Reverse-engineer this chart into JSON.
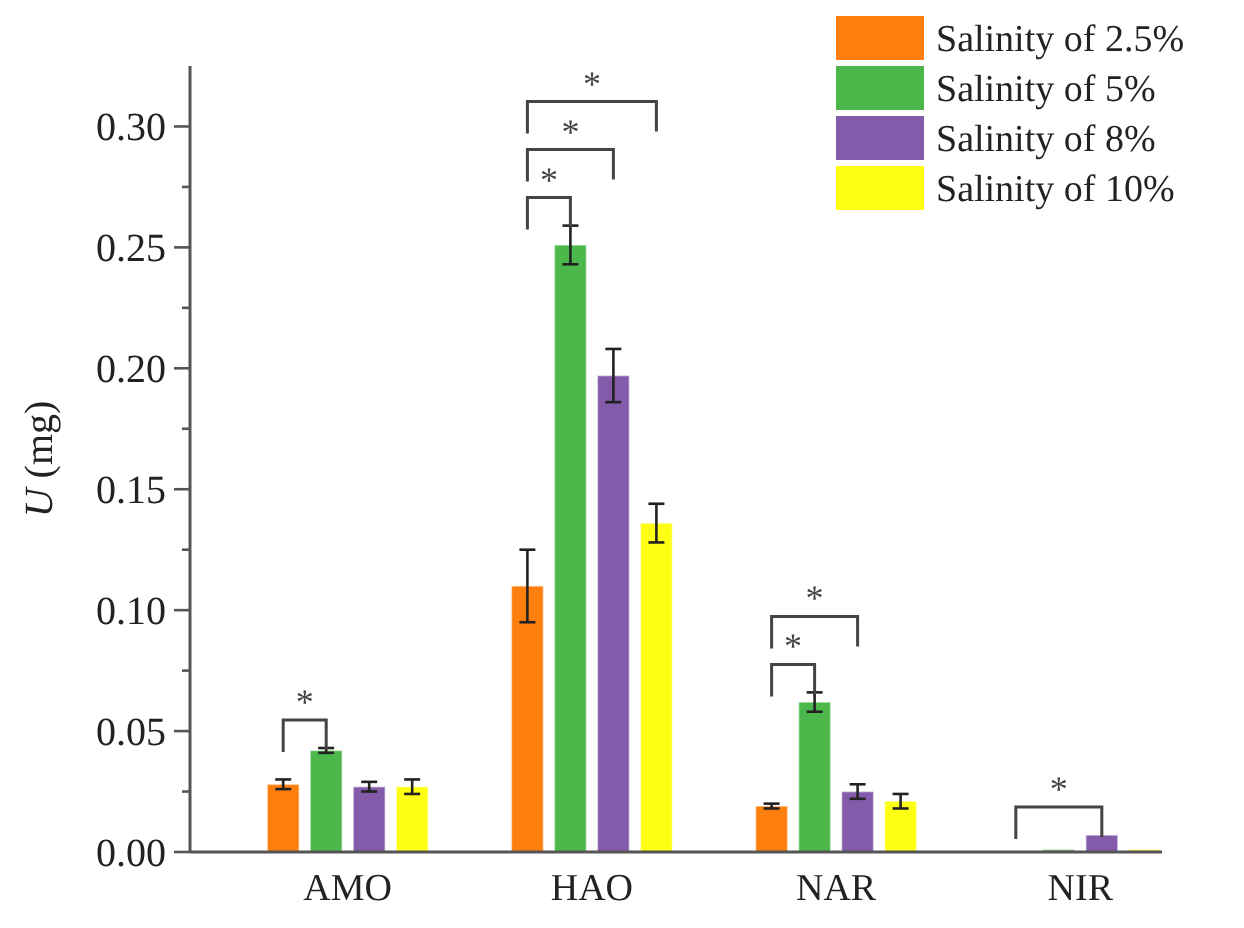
{
  "chart_data": {
    "type": "bar",
    "ylabel": "U (mg)",
    "categories": [
      "AMO",
      "HAO",
      "NAR",
      "NIR"
    ],
    "series": [
      {
        "name": "Salinity of 2.5%",
        "color": "#ff7f0e",
        "values": [
          0.028,
          0.11,
          0.019,
          null
        ],
        "errors": [
          0.002,
          0.015,
          0.001,
          null
        ]
      },
      {
        "name": "Salinity of 5%",
        "color": "#4cb84c",
        "values": [
          0.042,
          0.251,
          0.062,
          0.001
        ],
        "errors": [
          0.001,
          0.008,
          0.004,
          null
        ]
      },
      {
        "name": "Salinity of 8%",
        "color": "#845bab",
        "values": [
          0.027,
          0.197,
          0.025,
          0.007
        ],
        "errors": [
          0.002,
          0.011,
          0.003,
          null
        ]
      },
      {
        "name": "Salinity of 10%",
        "color": "#ffff14",
        "values": [
          0.027,
          0.136,
          0.021,
          0.001
        ],
        "errors": [
          0.003,
          0.008,
          0.003,
          null
        ]
      }
    ],
    "ylim": [
      0,
      0.325
    ],
    "yticks": [
      {
        "value": 0,
        "label": "0.00"
      },
      {
        "value": 0.05,
        "label": "0.05"
      },
      {
        "value": 0.1,
        "label": "0.10"
      },
      {
        "value": 0.15,
        "label": "0.15"
      },
      {
        "value": 0.2,
        "label": "0.20"
      },
      {
        "value": 0.25,
        "label": "0.25"
      },
      {
        "value": 0.3,
        "label": "0.30"
      }
    ],
    "legend": "top right",
    "annotations": [
      "*",
      "*",
      "*",
      "*",
      "*",
      "*",
      "*"
    ]
  }
}
